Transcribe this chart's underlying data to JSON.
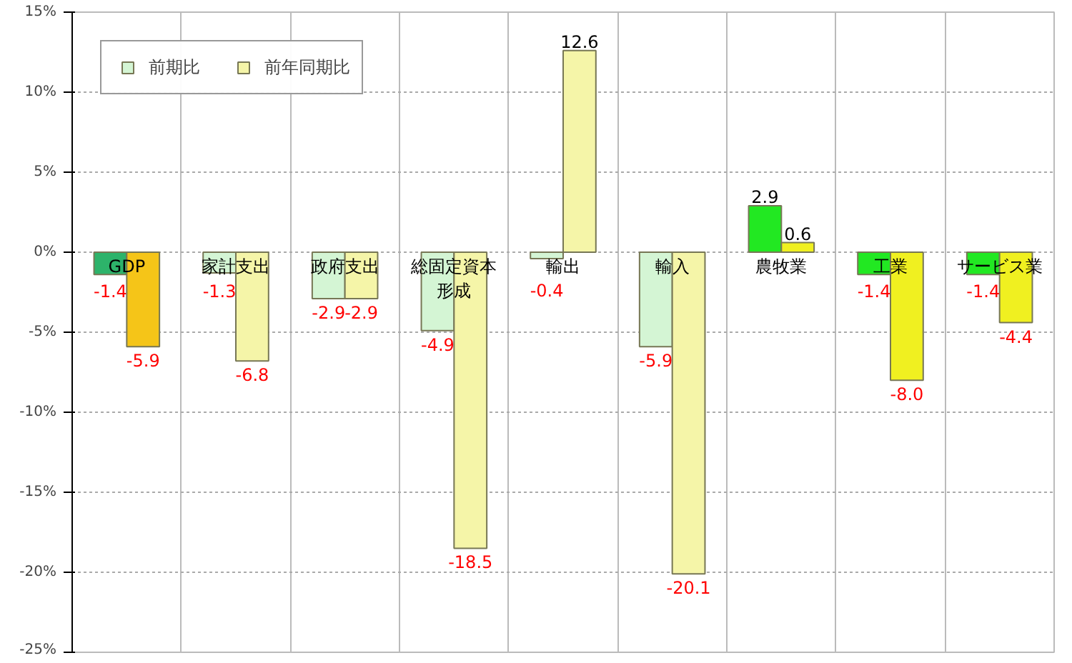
{
  "chart_data": {
    "type": "bar",
    "categories": [
      "GDP",
      "家計支出",
      "政府支出",
      "総固定資本形成",
      "輸出",
      "輸入",
      "農牧業",
      "工業",
      "サービス業"
    ],
    "series": [
      {
        "name": "前期比",
        "color": "#d4f5d4",
        "colors": [
          "#2db36a",
          "#d4f5d4",
          "#d4f5d4",
          "#d4f5d4",
          "#d4f5d4",
          "#d4f5d4",
          "#22e822",
          "#22e822",
          "#22e822"
        ],
        "values": [
          -1.4,
          -1.3,
          -2.9,
          -4.9,
          -0.4,
          -5.9,
          2.9,
          -1.4,
          -1.4
        ],
        "value_labels": [
          "-1.4",
          "-1.3",
          "-2.9",
          "-4.9",
          "-0.4",
          "-5.9",
          "2.9",
          "-1.4",
          "-1.4"
        ]
      },
      {
        "name": "前年同期比",
        "color": "#f5f5a8",
        "colors": [
          "#f5c518",
          "#f5f5a8",
          "#f5f5a8",
          "#f5f5a8",
          "#f5f5a8",
          "#f5f5a8",
          "#f0f020",
          "#f0f020",
          "#f0f020"
        ],
        "values": [
          -5.9,
          -6.8,
          -2.9,
          -18.5,
          12.6,
          -20.1,
          0.6,
          -8.0,
          -4.4
        ],
        "value_labels": [
          "-5.9",
          "-6.8",
          "-2.9",
          "-18.5",
          "12.6",
          "-20.1",
          "0.6",
          "-8.0",
          "-4.4"
        ]
      }
    ],
    "ylim": [
      -25,
      15
    ],
    "yticks": [
      {
        "value": -25,
        "label": "-25%"
      },
      {
        "value": -20,
        "label": "-20%"
      },
      {
        "value": -15,
        "label": "-15%"
      },
      {
        "value": -10,
        "label": "-10%"
      },
      {
        "value": -5,
        "label": "-5%"
      },
      {
        "value": 0,
        "label": "0%"
      },
      {
        "value": 5,
        "label": "5%"
      },
      {
        "value": 10,
        "label": "10%"
      },
      {
        "value": 15,
        "label": "15%"
      }
    ],
    "grid": true,
    "legend": "top left"
  }
}
